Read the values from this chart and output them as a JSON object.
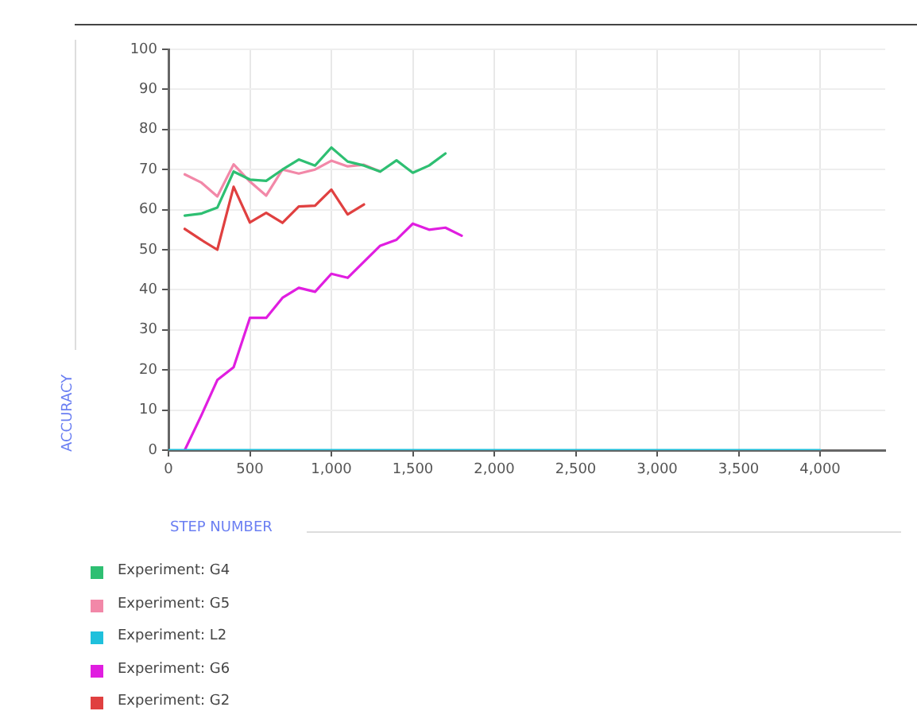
{
  "chart_data": {
    "type": "line",
    "xlabel": "STEP NUMBER",
    "ylabel": "ACCURACY",
    "xlim": [
      0,
      4400
    ],
    "xticks": [
      0,
      500,
      {
        "value": 1000,
        "label": "1,000"
      },
      {
        "value": 1500,
        "label": "1,500"
      },
      {
        "value": 2000,
        "label": "2,000"
      },
      {
        "value": 2500,
        "label": "2,500"
      },
      {
        "value": 3000,
        "label": "3,000"
      },
      {
        "value": 3500,
        "label": "3,500"
      },
      {
        "value": 4000,
        "label": "4,000"
      }
    ],
    "ylim": [
      0,
      100
    ],
    "yticks": [
      0,
      10,
      20,
      30,
      40,
      50,
      60,
      70,
      80,
      90,
      100
    ],
    "grid": true,
    "legend": "bottom left",
    "marker": "none",
    "line_style": "solid",
    "series": [
      {
        "name": "Experiment: G4",
        "color": "#2ebf72",
        "x": [
          100,
          200,
          300,
          400,
          500,
          600,
          700,
          800,
          900,
          1000,
          1100,
          1200,
          1300,
          1400,
          1500,
          1600,
          1700
        ],
        "values": [
          58.5,
          59,
          60.5,
          69.5,
          67.5,
          67.2,
          70,
          72.5,
          71,
          75.5,
          72,
          71,
          69.5,
          72.3,
          69.2,
          71,
          74
        ]
      },
      {
        "name": "Experiment: G5",
        "color": "#f288a8",
        "x": [
          100,
          200,
          300,
          400,
          500,
          600,
          700,
          800,
          900,
          1000,
          1100,
          1200,
          1300
        ],
        "values": [
          68.8,
          66.8,
          63.3,
          71.3,
          67,
          63.5,
          70,
          69,
          70,
          72.2,
          70.8,
          71.2,
          69.5
        ]
      },
      {
        "name": "Experiment: L2",
        "color": "#1fc0dc",
        "x": [
          0,
          1000,
          2000,
          3000,
          4000
        ],
        "values": [
          0,
          0,
          0,
          0,
          0
        ]
      },
      {
        "name": "Experiment: G6",
        "color": "#e01ee0",
        "x": [
          100,
          200,
          300,
          400,
          500,
          600,
          700,
          800,
          900,
          1000,
          1100,
          1200,
          1300,
          1400,
          1500,
          1600,
          1700,
          1800
        ],
        "values": [
          0,
          8.5,
          17.5,
          20.7,
          33,
          33,
          38,
          40.5,
          39.5,
          44,
          43,
          47,
          51,
          52.5,
          56.5,
          55,
          55.5,
          53.5
        ]
      },
      {
        "name": "Experiment: G2",
        "color": "#e04040",
        "x": [
          100,
          200,
          300,
          400,
          500,
          600,
          700,
          800,
          900,
          1000,
          1100,
          1200
        ],
        "values": [
          55.2,
          52.5,
          50,
          65.7,
          56.8,
          59.2,
          56.7,
          60.8,
          61,
          65,
          58.8,
          61.3
        ]
      }
    ]
  }
}
